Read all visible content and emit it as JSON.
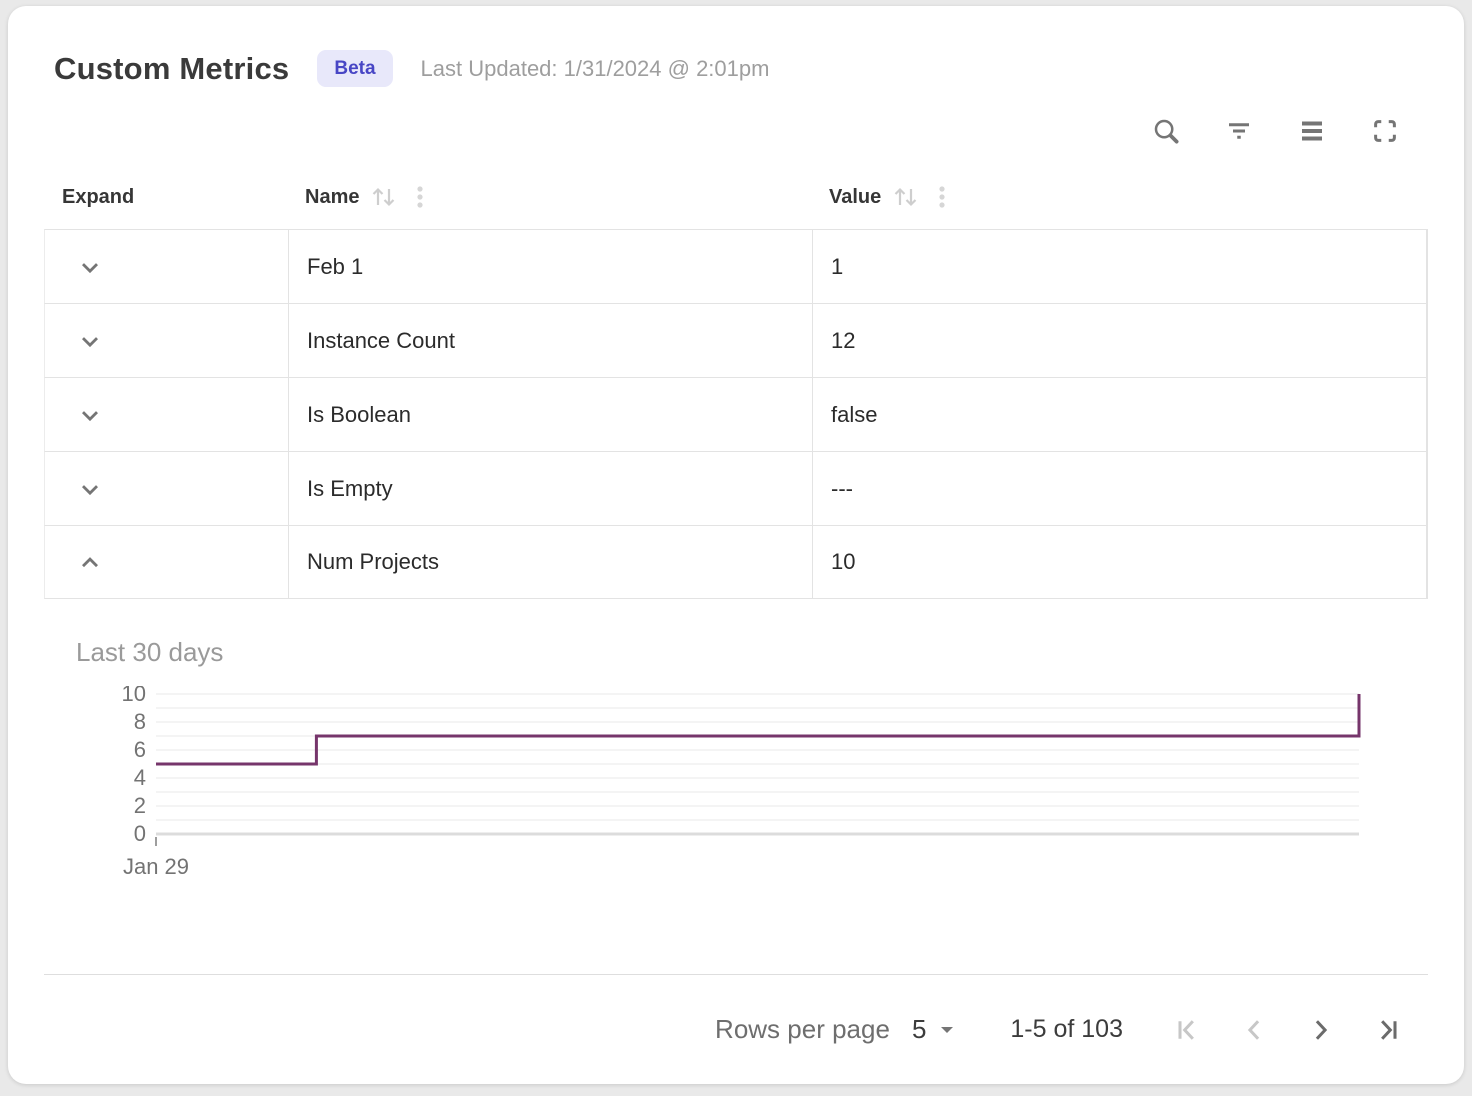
{
  "header": {
    "title": "Custom Metrics",
    "badge": "Beta",
    "last_updated": "Last Updated: 1/31/2024 @ 2:01pm"
  },
  "toolbar": {
    "icons": [
      "search",
      "filter",
      "density",
      "fullscreen"
    ]
  },
  "table": {
    "columns": [
      {
        "id": "expand",
        "label": "Expand",
        "sortable": false
      },
      {
        "id": "name",
        "label": "Name",
        "sortable": true
      },
      {
        "id": "value",
        "label": "Value",
        "sortable": true
      }
    ],
    "rows": [
      {
        "name": "Feb 1",
        "value": "1",
        "expanded": false
      },
      {
        "name": "Instance Count",
        "value": "12",
        "expanded": false
      },
      {
        "name": "Is Boolean",
        "value": "false",
        "expanded": false
      },
      {
        "name": "Is Empty",
        "value": "---",
        "expanded": false
      },
      {
        "name": "Num Projects",
        "value": "10",
        "expanded": true
      }
    ]
  },
  "expanded_panel": {
    "title": "Last 30 days"
  },
  "chart_data": {
    "type": "line",
    "subtype": "step-after",
    "title": "Last 30 days",
    "series_name": "Num Projects",
    "x_axis": "days since Jan 29",
    "x_start_label": "Jan 29",
    "x_range_days": 30,
    "points": [
      {
        "day": 0,
        "value": 5
      },
      {
        "day": 4,
        "value": 7
      },
      {
        "day": 30,
        "value": 10
      }
    ],
    "ylim": [
      0,
      10
    ],
    "yticks": [
      0,
      2,
      4,
      6,
      8,
      10
    ],
    "gridlines": "horizontal every 1 unit",
    "legend": "none",
    "line_color": "#76356B"
  },
  "footer": {
    "rows_per_page_label": "Rows per page",
    "rows_per_page_value": "5",
    "range_label": "1-5 of 103",
    "pagination": [
      {
        "name": "first-page",
        "enabled": false
      },
      {
        "name": "prev-page",
        "enabled": false
      },
      {
        "name": "next-page",
        "enabled": true
      },
      {
        "name": "last-page",
        "enabled": true
      }
    ]
  },
  "colors": {
    "badge_bg": "#e8e8fa",
    "badge_text": "#4846c5",
    "line": "#76356B",
    "border": "#e3e3e3",
    "icon": "#757575",
    "icon_disabled": "#c7c7c7",
    "grid_light": "#f1f1f1",
    "axis_dark": "#dcdcdc",
    "text_secondary": "#9e9e9e"
  }
}
